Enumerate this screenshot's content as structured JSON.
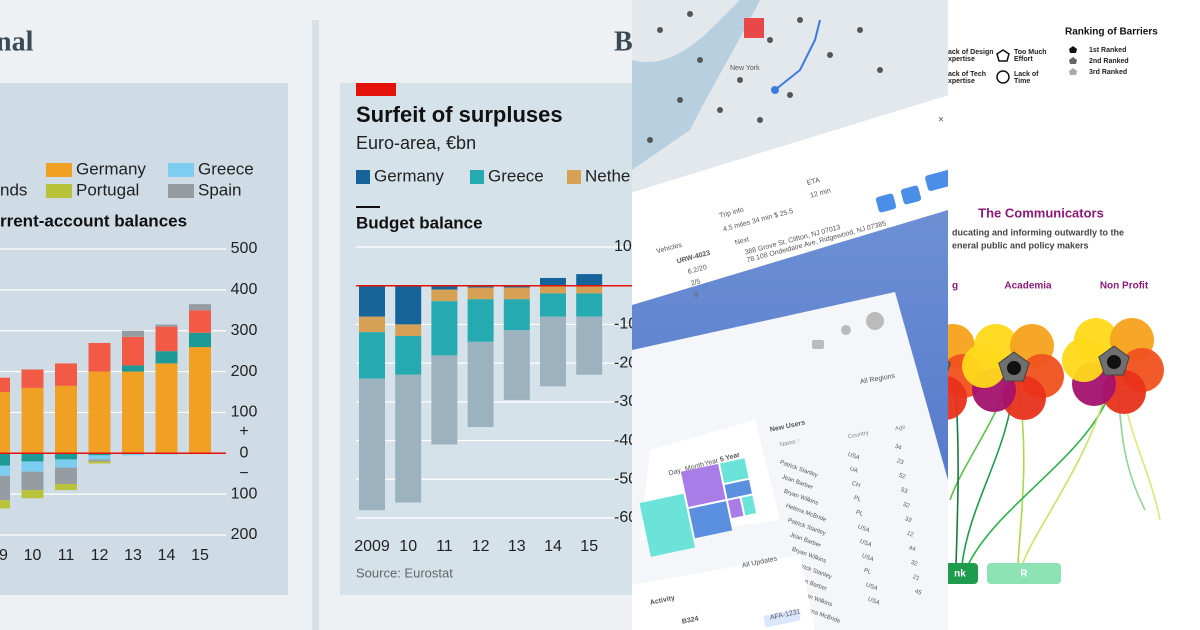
{
  "headers": [
    "nal",
    "B"
  ],
  "chart_data": [
    {
      "type": "stacked_bar",
      "subtitle": "rrent-account balances",
      "categories": [
        "09",
        "10",
        "11",
        "12",
        "13",
        "14",
        "15"
      ],
      "series": [
        {
          "name": "Germany",
          "color": "#f0a023",
          "values": [
            150,
            160,
            165,
            200,
            200,
            220,
            260
          ]
        },
        {
          "color": "#1d9a96",
          "values": [
            -30,
            -20,
            -15,
            -5,
            15,
            30,
            35
          ]
        },
        {
          "name": "nds",
          "color": "#f25a45",
          "values": [
            35,
            45,
            55,
            70,
            70,
            60,
            55
          ]
        },
        {
          "name": "Greece",
          "color": "#7ccdf0",
          "values": [
            -25,
            -25,
            -20,
            -10,
            -5,
            -3,
            0
          ]
        },
        {
          "name": "Spain",
          "color": "#959da3",
          "values": [
            -60,
            -45,
            -40,
            -5,
            15,
            5,
            15
          ]
        },
        {
          "name": "Portugal",
          "color": "#b8c33a",
          "values": [
            -20,
            -20,
            -15,
            -5,
            0,
            0,
            0
          ]
        }
      ],
      "ylim": [
        -200,
        500
      ],
      "yticks": [
        500,
        400,
        300,
        200,
        100,
        0,
        {
          "value": -100,
          "label": "100"
        },
        {
          "value": -200,
          "label": "200"
        }
      ],
      "sign_labels": [
        "+",
        "−"
      ],
      "grid": true
    },
    {
      "type": "stacked_bar",
      "title": "Surfeit of surpluses",
      "subtitle": "Euro-area, €bn",
      "panel_title": "Budget balance",
      "source": "Source: Eurostat",
      "categories": [
        "2009",
        "10",
        "11",
        "12",
        "13",
        "14",
        "15"
      ],
      "series": [
        {
          "name": "Germany",
          "color": "#17649a",
          "values": [
            -8,
            -10,
            -1,
            -0.5,
            -0.5,
            2,
            3
          ]
        },
        {
          "name": "Nethe",
          "color": "#d6a154",
          "values": [
            -4,
            -3,
            -3,
            -3,
            -3,
            -2,
            -2
          ]
        },
        {
          "name": "Greece",
          "color": "#24aab0",
          "values": [
            -12,
            -10,
            -14,
            -11,
            -8,
            -6,
            -6
          ]
        },
        {
          "color": "#9db2bf",
          "values": [
            -34,
            -33,
            -23,
            -22,
            -18,
            -18,
            -15
          ]
        }
      ],
      "ylim": [
        -60,
        10
      ],
      "yticks": [
        10,
        -10,
        -20,
        -30,
        -40,
        -50,
        -60
      ],
      "grid": true
    }
  ],
  "dashboard": {
    "map_label": "New York",
    "vehicles": "Vehicles",
    "vehicle_id": "URW-4023",
    "vehicle_stats": [
      "6.2/20",
      "2/5",
      "0"
    ],
    "trip_info": "Trip info",
    "trip": "4.5 miles  34 min  $ 25.5",
    "eta_label": "ETA",
    "eta": "12 min",
    "next": "Next",
    "addresses": [
      "388 Grove St, Clifton, NJ 07013",
      "78 108 Ondeidaire Ave, Ridgewood, NJ 07385"
    ],
    "periods": [
      "Day",
      "Month",
      "Year",
      "5 Year"
    ],
    "regions": "All Regions",
    "new_users": "New Users",
    "columns": [
      "Name ↑",
      "Country",
      "Age"
    ],
    "users": [
      [
        "Patrick Stanley",
        "USA",
        "34"
      ],
      [
        "Jean Barber",
        "UA",
        "23"
      ],
      [
        "Bryan Wilkins",
        "CH",
        "52"
      ],
      [
        "Helena McBride",
        "PL",
        "53"
      ],
      [
        "Patrick Stanley",
        "PL",
        "32"
      ],
      [
        "Jean Barber",
        "USA",
        "33"
      ],
      [
        "Bryan Wilkins",
        "USA",
        "12"
      ],
      [
        "Patrick Stanley",
        "USA",
        "44"
      ],
      [
        "Jean Barber",
        "PL",
        "32"
      ],
      [
        "Bryan Wilkins",
        "USA",
        "21"
      ],
      [
        "Helena McBride",
        "USA",
        "45"
      ]
    ],
    "activity": "Activity",
    "updates": "All Updates",
    "ticket": "B324",
    "tag": "AFA-1231"
  },
  "infographic": {
    "legend_title": "Ranking of Barriers",
    "ranks": [
      "1st Ranked",
      "2nd Ranked",
      "3rd Ranked"
    ],
    "barriers": [
      "ack of Design\nxpertise",
      "ack of Tech\nxpertise",
      "Too Much\nEffort",
      "Lack of\nTime"
    ],
    "title": "The Communicators",
    "description": [
      "ducating and informing outwardly to the",
      "eneral public and policy makers"
    ],
    "groups": [
      "g",
      "Academia",
      "Non Profit"
    ],
    "buttons": [
      "nk",
      "R"
    ]
  }
}
